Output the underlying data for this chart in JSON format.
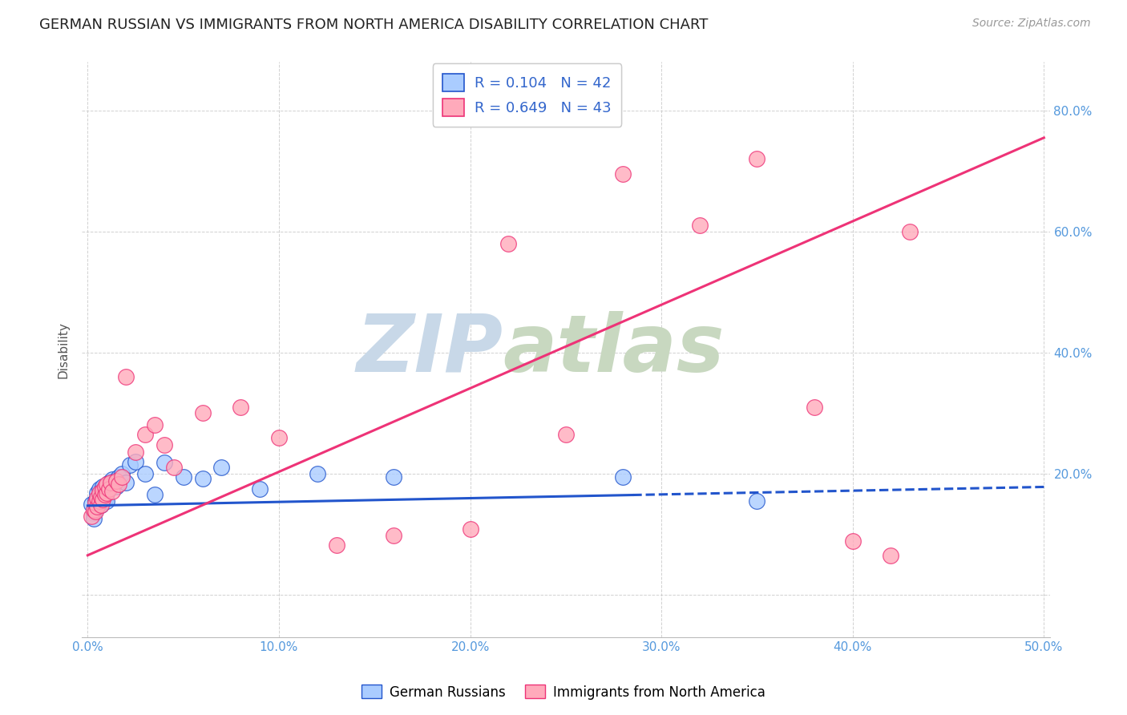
{
  "title": "GERMAN RUSSIAN VS IMMIGRANTS FROM NORTH AMERICA DISABILITY CORRELATION CHART",
  "source": "Source: ZipAtlas.com",
  "ylabel": "Disability",
  "xlim": [
    -0.003,
    0.503
  ],
  "ylim": [
    -0.07,
    0.88
  ],
  "xticks": [
    0.0,
    0.1,
    0.2,
    0.3,
    0.4,
    0.5
  ],
  "xticklabels": [
    "0.0%",
    "10.0%",
    "20.0%",
    "30.0%",
    "40.0%",
    "50.0%"
  ],
  "yticks_right": [
    0.2,
    0.4,
    0.6,
    0.8
  ],
  "yticklabels_right": [
    "20.0%",
    "40.0%",
    "60.0%",
    "80.0%"
  ],
  "yticks_grid": [
    0.0,
    0.2,
    0.4,
    0.6,
    0.8
  ],
  "legend_entry1": "R = 0.104   N = 42",
  "legend_entry2": "R = 0.649   N = 43",
  "legend_label1": "German Russians",
  "legend_label2": "Immigrants from North America",
  "series1_color": "#aaccff",
  "series2_color": "#ffaabb",
  "trendline1_color": "#2255cc",
  "trendline2_color": "#ee3377",
  "watermark_zip_color": "#c8d8e8",
  "watermark_atlas_color": "#c8d8c0",
  "background_color": "#ffffff",
  "grid_color": "#cccccc",
  "title_fontsize": 13,
  "tick_color": "#5599dd",
  "series1_x": [
    0.002,
    0.003,
    0.003,
    0.004,
    0.004,
    0.005,
    0.005,
    0.005,
    0.006,
    0.006,
    0.006,
    0.007,
    0.007,
    0.007,
    0.008,
    0.008,
    0.008,
    0.009,
    0.009,
    0.01,
    0.01,
    0.011,
    0.012,
    0.013,
    0.014,
    0.015,
    0.016,
    0.018,
    0.02,
    0.022,
    0.025,
    0.03,
    0.035,
    0.04,
    0.05,
    0.06,
    0.07,
    0.09,
    0.12,
    0.16,
    0.28,
    0.35
  ],
  "series1_y": [
    0.15,
    0.135,
    0.125,
    0.14,
    0.155,
    0.145,
    0.158,
    0.168,
    0.15,
    0.162,
    0.175,
    0.148,
    0.16,
    0.17,
    0.155,
    0.165,
    0.178,
    0.158,
    0.17,
    0.155,
    0.168,
    0.185,
    0.182,
    0.19,
    0.188,
    0.178,
    0.195,
    0.2,
    0.185,
    0.215,
    0.22,
    0.2,
    0.165,
    0.218,
    0.195,
    0.192,
    0.21,
    0.175,
    0.2,
    0.195,
    0.195,
    0.155
  ],
  "series2_x": [
    0.002,
    0.003,
    0.004,
    0.004,
    0.005,
    0.005,
    0.006,
    0.006,
    0.007,
    0.007,
    0.008,
    0.008,
    0.009,
    0.009,
    0.01,
    0.01,
    0.011,
    0.012,
    0.013,
    0.015,
    0.016,
    0.018,
    0.02,
    0.025,
    0.03,
    0.035,
    0.04,
    0.045,
    0.06,
    0.08,
    0.1,
    0.13,
    0.16,
    0.2,
    0.22,
    0.25,
    0.28,
    0.32,
    0.35,
    0.38,
    0.4,
    0.42,
    0.43
  ],
  "series2_y": [
    0.13,
    0.14,
    0.138,
    0.152,
    0.145,
    0.16,
    0.155,
    0.168,
    0.148,
    0.162,
    0.158,
    0.172,
    0.165,
    0.178,
    0.168,
    0.182,
    0.175,
    0.185,
    0.17,
    0.188,
    0.182,
    0.195,
    0.36,
    0.235,
    0.265,
    0.28,
    0.248,
    0.21,
    0.3,
    0.31,
    0.26,
    0.082,
    0.098,
    0.108,
    0.58,
    0.265,
    0.695,
    0.61,
    0.72,
    0.31,
    0.088,
    0.065,
    0.6
  ],
  "trendline1_x_solid_end": 0.285,
  "trendline1_slope": 0.062,
  "trendline1_intercept": 0.147,
  "trendline2_slope": 1.38,
  "trendline2_intercept": 0.065
}
